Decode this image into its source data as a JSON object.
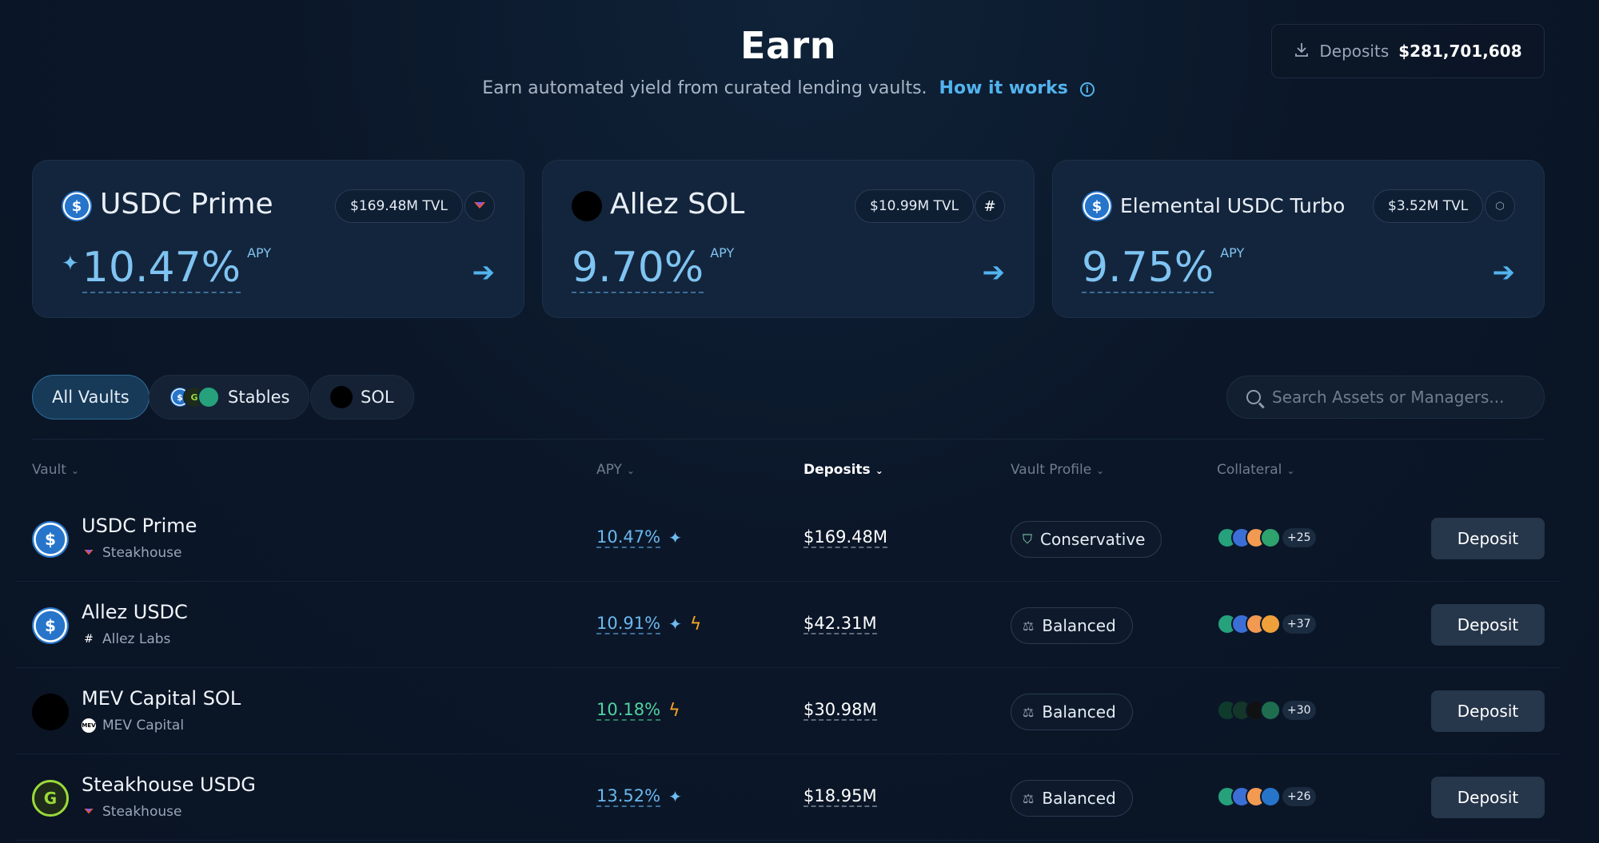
{
  "header": {
    "title": "Earn",
    "subtitle": "Earn automated yield from curated lending vaults.",
    "how_link": "How it works",
    "deposits_label": "Deposits",
    "deposits_value": "$281,701,608"
  },
  "featured": [
    {
      "name": "USDC Prime",
      "tvl": "$169.48M TVL",
      "apy": "10.47%",
      "apy_unit": "APY"
    },
    {
      "name": "Allez SOL",
      "tvl": "$10.99M TVL",
      "apy": "9.70%",
      "apy_unit": "APY"
    },
    {
      "name": "Elemental USDC Turbo",
      "tvl": "$3.52M TVL",
      "apy": "9.75%",
      "apy_unit": "APY"
    }
  ],
  "filters": {
    "all": "All Vaults",
    "stables": "Stables",
    "sol": "SOL",
    "search_placeholder": "Search Assets or Managers..."
  },
  "columns": {
    "vault": "Vault",
    "apy": "APY",
    "deposits": "Deposits",
    "profile": "Vault Profile",
    "collateral": "Collateral"
  },
  "rows": [
    {
      "name": "USDC Prime",
      "manager": "Steakhouse",
      "apy": "10.47%",
      "deposits": "$169.48M",
      "profile": "Conservative",
      "more": "+25",
      "action": "Deposit"
    },
    {
      "name": "Allez USDC",
      "manager": "Allez Labs",
      "apy": "10.91%",
      "deposits": "$42.31M",
      "profile": "Balanced",
      "more": "+37",
      "action": "Deposit"
    },
    {
      "name": "MEV Capital SOL",
      "manager": "MEV Capital",
      "apy": "10.18%",
      "deposits": "$30.98M",
      "profile": "Balanced",
      "more": "+30",
      "action": "Deposit"
    },
    {
      "name": "Steakhouse USDG",
      "manager": "Steakhouse",
      "apy": "13.52%",
      "deposits": "$18.95M",
      "profile": "Balanced",
      "more": "+26",
      "action": "Deposit"
    }
  ],
  "colors": {
    "accent": "#52b3ee",
    "apy_green": "#4fd3a2",
    "boost": "#f5a524",
    "background": "#0b1729"
  }
}
